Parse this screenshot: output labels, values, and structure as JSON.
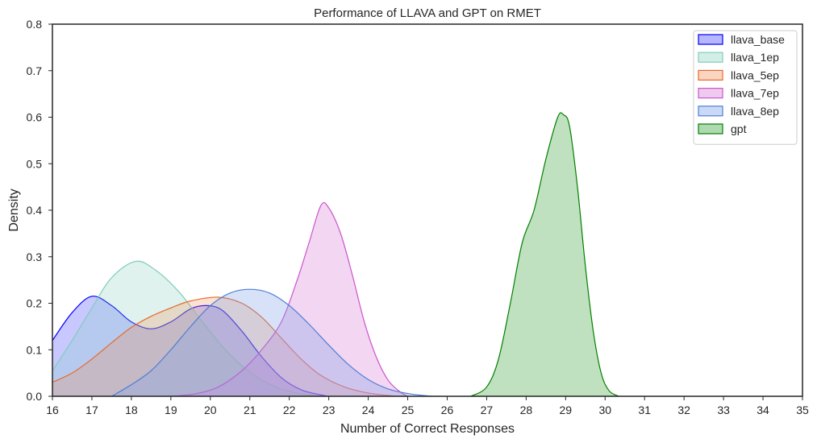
{
  "chart_data": {
    "type": "area",
    "title": "Performance of LLAVA and GPT on RMET",
    "xlabel": "Number of Correct Responses",
    "ylabel": "Density",
    "xlim": [
      16,
      35
    ],
    "ylim": [
      0,
      0.8
    ],
    "x_ticks": [
      16,
      17,
      18,
      19,
      20,
      21,
      22,
      23,
      24,
      25,
      26,
      27,
      28,
      29,
      30,
      31,
      32,
      33,
      34,
      35
    ],
    "y_ticks": [
      0.0,
      0.1,
      0.2,
      0.3,
      0.4,
      0.5,
      0.6,
      0.7,
      0.8
    ],
    "y_tick_labels": [
      "0.0",
      "0.1",
      "0.2",
      "0.3",
      "0.4",
      "0.5",
      "0.6",
      "0.7",
      "0.8"
    ],
    "grid": false,
    "legend_position": "top-right",
    "series": [
      {
        "name": "llava_base",
        "color": "#0000ff",
        "fill": "#4a4aff",
        "fill_opacity": 0.3,
        "points": [
          [
            16,
            0.12
          ],
          [
            16.5,
            0.18
          ],
          [
            17,
            0.215
          ],
          [
            17.5,
            0.195
          ],
          [
            18,
            0.16
          ],
          [
            18.5,
            0.145
          ],
          [
            19,
            0.16
          ],
          [
            19.5,
            0.188
          ],
          [
            19.9,
            0.195
          ],
          [
            20.3,
            0.185
          ],
          [
            20.8,
            0.14
          ],
          [
            21.3,
            0.085
          ],
          [
            21.8,
            0.04
          ],
          [
            22.3,
            0.014
          ],
          [
            22.8,
            0.003
          ],
          [
            23,
            0.0
          ]
        ]
      },
      {
        "name": "llava_1ep",
        "color": "#7fcdbb",
        "fill": "#7fcdbb",
        "fill_opacity": 0.25,
        "points": [
          [
            16,
            0.055
          ],
          [
            16.5,
            0.12
          ],
          [
            17,
            0.19
          ],
          [
            17.5,
            0.255
          ],
          [
            18.1,
            0.29
          ],
          [
            18.6,
            0.272
          ],
          [
            19.2,
            0.225
          ],
          [
            19.8,
            0.16
          ],
          [
            20.4,
            0.098
          ],
          [
            21,
            0.052
          ],
          [
            21.6,
            0.022
          ],
          [
            22.2,
            0.007
          ],
          [
            22.8,
            0.0
          ]
        ]
      },
      {
        "name": "llava_5ep",
        "color": "#e8692a",
        "fill": "#f28a4f",
        "fill_opacity": 0.25,
        "points": [
          [
            16,
            0.03
          ],
          [
            16.5,
            0.05
          ],
          [
            17,
            0.08
          ],
          [
            17.5,
            0.115
          ],
          [
            18,
            0.148
          ],
          [
            18.5,
            0.172
          ],
          [
            19,
            0.19
          ],
          [
            19.5,
            0.205
          ],
          [
            20.2,
            0.213
          ],
          [
            20.8,
            0.2
          ],
          [
            21.3,
            0.17
          ],
          [
            21.8,
            0.125
          ],
          [
            22.3,
            0.08
          ],
          [
            22.8,
            0.045
          ],
          [
            23.4,
            0.02
          ],
          [
            24,
            0.007
          ],
          [
            24.6,
            0.001
          ],
          [
            25,
            0.0
          ]
        ]
      },
      {
        "name": "llava_7ep",
        "color": "#cc55cc",
        "fill": "#d98ad9",
        "fill_opacity": 0.35,
        "points": [
          [
            19,
            0.0
          ],
          [
            19.6,
            0.005
          ],
          [
            20.2,
            0.02
          ],
          [
            20.8,
            0.055
          ],
          [
            21.3,
            0.1
          ],
          [
            21.8,
            0.16
          ],
          [
            22.2,
            0.25
          ],
          [
            22.5,
            0.33
          ],
          [
            22.8,
            0.41
          ],
          [
            23.0,
            0.405
          ],
          [
            23.3,
            0.35
          ],
          [
            23.6,
            0.26
          ],
          [
            23.9,
            0.16
          ],
          [
            24.2,
            0.085
          ],
          [
            24.5,
            0.035
          ],
          [
            24.8,
            0.01
          ],
          [
            25.0,
            0.0
          ]
        ]
      },
      {
        "name": "llava_8ep",
        "color": "#4f7fd4",
        "fill": "#7aa0e8",
        "fill_opacity": 0.3,
        "points": [
          [
            17.5,
            0.0
          ],
          [
            18,
            0.025
          ],
          [
            18.5,
            0.055
          ],
          [
            19,
            0.1
          ],
          [
            19.5,
            0.15
          ],
          [
            20,
            0.195
          ],
          [
            20.5,
            0.222
          ],
          [
            21,
            0.23
          ],
          [
            21.5,
            0.222
          ],
          [
            22,
            0.195
          ],
          [
            22.5,
            0.155
          ],
          [
            23,
            0.11
          ],
          [
            23.5,
            0.068
          ],
          [
            24,
            0.036
          ],
          [
            24.5,
            0.016
          ],
          [
            25,
            0.006
          ],
          [
            25.5,
            0.001
          ],
          [
            25.8,
            0.0
          ]
        ]
      },
      {
        "name": "gpt",
        "color": "#008000",
        "fill": "#5fb35f",
        "fill_opacity": 0.4,
        "points": [
          [
            26.6,
            0.0
          ],
          [
            27.0,
            0.02
          ],
          [
            27.3,
            0.08
          ],
          [
            27.6,
            0.2
          ],
          [
            27.9,
            0.33
          ],
          [
            28.2,
            0.4
          ],
          [
            28.5,
            0.51
          ],
          [
            28.8,
            0.6
          ],
          [
            28.95,
            0.605
          ],
          [
            29.1,
            0.58
          ],
          [
            29.3,
            0.45
          ],
          [
            29.5,
            0.28
          ],
          [
            29.7,
            0.14
          ],
          [
            29.9,
            0.05
          ],
          [
            30.1,
            0.012
          ],
          [
            30.35,
            0.0
          ]
        ]
      }
    ]
  }
}
